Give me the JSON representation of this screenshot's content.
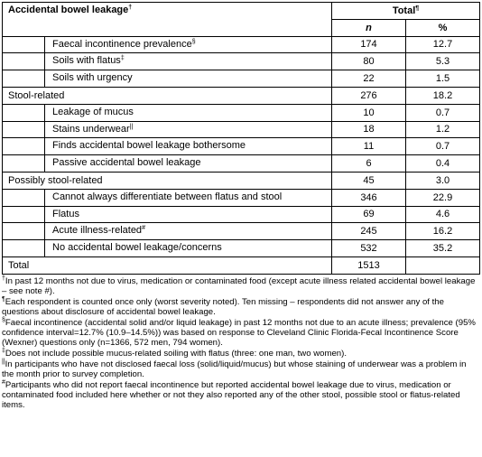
{
  "table": {
    "header": {
      "label": {
        "text": "Accidental bowel leakage",
        "sup": "†"
      },
      "total": {
        "text": "Total",
        "sup": "¶"
      },
      "n": "n",
      "pct": "%"
    },
    "rows": [
      {
        "label": "Faecal incontinence prevalence",
        "sup": "§",
        "indent": true,
        "n": "174",
        "pct": "12.7"
      },
      {
        "label": "Soils with flatus",
        "sup": "‡",
        "indent": true,
        "n": "80",
        "pct": "5.3"
      },
      {
        "label": "Soils with urgency",
        "indent": true,
        "n": "22",
        "pct": "1.5"
      },
      {
        "label": "Stool-related",
        "indent": false,
        "n": "276",
        "pct": "18.2"
      },
      {
        "label": "Leakage of mucus",
        "indent": true,
        "n": "10",
        "pct": "0.7"
      },
      {
        "label": "Stains underwear",
        "sup": "||",
        "indent": true,
        "n": "18",
        "pct": "1.2"
      },
      {
        "label": "Finds accidental bowel leakage bothersome",
        "indent": true,
        "n": "11",
        "pct": "0.7"
      },
      {
        "label": "Passive accidental bowel leakage",
        "indent": true,
        "n": "6",
        "pct": "0.4"
      },
      {
        "label": "Possibly stool-related",
        "indent": false,
        "n": "45",
        "pct": "3.0"
      },
      {
        "label": "Cannot always differentiate between flatus and stool",
        "indent": true,
        "n": "346",
        "pct": "22.9"
      },
      {
        "label": "Flatus",
        "indent": true,
        "n": "69",
        "pct": "4.6"
      },
      {
        "label": "Acute illness-related",
        "sup": "#",
        "indent": true,
        "n": "245",
        "pct": "16.2"
      },
      {
        "label": "No accidental bowel leakage/concerns",
        "indent": true,
        "n": "532",
        "pct": "35.2"
      },
      {
        "label": "Total",
        "indent": false,
        "n": "1513"
      }
    ]
  },
  "footnotes": [
    {
      "sup": "†",
      "text": "In past 12 months not due to virus, medication or contaminated food (except acute illness related accidental bowel leakage – see note #)."
    },
    {
      "sup": "¶",
      "text": "Each respondent is counted once only (worst severity noted). Ten missing – respondents did not answer any of the questions about disclosure of accidental bowel leakage."
    },
    {
      "sup": "§",
      "text": "Faecal incontinence (accidental solid and/or liquid leakage) in past 12 months not due to an acute illness; prevalence (95% confidence interval=12.7% (10.9–14.5%)) was based on response to Cleveland Clinic Florida-Fecal Incontinence Score (Wexner) questions only (n=1366, 572 men, 794 women)."
    },
    {
      "sup": "‡",
      "text": "Does not include possible mucus-related soiling with flatus (three: one man, two women)."
    },
    {
      "sup": "||",
      "text": "In participants who have not disclosed faecal loss (solid/liquid/mucus) but whose staining of underwear was a problem in the month prior to survey completion."
    },
    {
      "sup": "#",
      "text": "Participants who did not report faecal incontinence but reported accidental bowel leakage due to virus, medication or contaminated food included here whether or not they also reported any of the other stool, possible stool or flatus-related items."
    }
  ]
}
